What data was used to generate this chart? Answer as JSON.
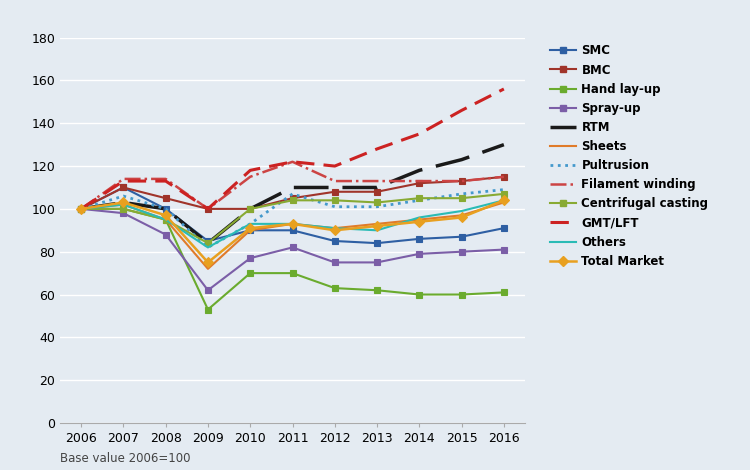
{
  "years": [
    2006,
    2007,
    2008,
    2009,
    2010,
    2011,
    2012,
    2013,
    2014,
    2015,
    2016
  ],
  "series": {
    "SMC": [
      100,
      110,
      100,
      85,
      90,
      90,
      85,
      84,
      86,
      87,
      91
    ],
    "BMC": [
      100,
      110,
      105,
      100,
      100,
      105,
      108,
      108,
      112,
      113,
      115
    ],
    "Hand lay-up": [
      100,
      100,
      95,
      53,
      70,
      70,
      63,
      62,
      60,
      60,
      61
    ],
    "Spray-up": [
      100,
      98,
      88,
      62,
      77,
      82,
      75,
      75,
      79,
      80,
      81
    ],
    "RTM": [
      100,
      103,
      100,
      84,
      100,
      110,
      110,
      110,
      118,
      123,
      130
    ],
    "Sheets": [
      100,
      102,
      95,
      72,
      90,
      93,
      91,
      93,
      95,
      97,
      103
    ],
    "Pultrusion": [
      100,
      106,
      100,
      82,
      93,
      107,
      101,
      101,
      104,
      107,
      109
    ],
    "Filament winding": [
      100,
      114,
      114,
      100,
      115,
      122,
      113,
      113,
      113,
      113,
      115
    ],
    "Centrifugal casting": [
      100,
      100,
      95,
      84,
      100,
      104,
      104,
      103,
      105,
      105,
      107
    ],
    "GMT/LFT": [
      100,
      113,
      113,
      100,
      118,
      122,
      120,
      128,
      135,
      146,
      156
    ],
    "Others": [
      100,
      102,
      95,
      82,
      93,
      93,
      91,
      90,
      96,
      99,
      104
    ],
    "Total Market": [
      100,
      103,
      97,
      75,
      91,
      93,
      90,
      92,
      94,
      96,
      104
    ]
  },
  "line_specs": [
    {
      "name": "SMC",
      "color": "#2E5FA3",
      "ls": "-",
      "lw": 1.5,
      "marker": "s",
      "ms": 4,
      "dashes": null
    },
    {
      "name": "BMC",
      "color": "#A0342A",
      "ls": "-",
      "lw": 1.5,
      "marker": "s",
      "ms": 4,
      "dashes": null
    },
    {
      "name": "Hand lay-up",
      "color": "#6AAB2E",
      "ls": "-",
      "lw": 1.5,
      "marker": "s",
      "ms": 4,
      "dashes": null
    },
    {
      "name": "Spray-up",
      "color": "#7B5EA7",
      "ls": "-",
      "lw": 1.5,
      "marker": "s",
      "ms": 4,
      "dashes": null
    },
    {
      "name": "RTM",
      "color": "#1A1A1A",
      "ls": "--",
      "lw": 2.5,
      "marker": "None",
      "ms": 0,
      "dashes": [
        10,
        4
      ]
    },
    {
      "name": "Sheets",
      "color": "#E07B2A",
      "ls": "-",
      "lw": 1.5,
      "marker": "None",
      "ms": 0,
      "dashes": null
    },
    {
      "name": "Pultrusion",
      "color": "#4499CC",
      "ls": ":",
      "lw": 2.0,
      "marker": "None",
      "ms": 0,
      "dashes": null
    },
    {
      "name": "Filament winding",
      "color": "#CC4444",
      "ls": "-.",
      "lw": 1.8,
      "marker": "None",
      "ms": 0,
      "dashes": null
    },
    {
      "name": "Centrifugal casting",
      "color": "#88AA33",
      "ls": "-",
      "lw": 1.5,
      "marker": "s",
      "ms": 4,
      "dashes": null
    },
    {
      "name": "GMT/LFT",
      "color": "#CC2222",
      "ls": "--",
      "lw": 2.2,
      "marker": "None",
      "ms": 0,
      "dashes": [
        6,
        3
      ]
    },
    {
      "name": "Others",
      "color": "#2ABBB5",
      "ls": "-",
      "lw": 1.5,
      "marker": "None",
      "ms": 0,
      "dashes": null
    },
    {
      "name": "Total Market",
      "color": "#E8A020",
      "ls": "-",
      "lw": 1.8,
      "marker": "D",
      "ms": 5,
      "dashes": null
    }
  ],
  "ylim": [
    0,
    180
  ],
  "yticks": [
    0,
    20,
    40,
    60,
    80,
    100,
    120,
    140,
    160,
    180
  ],
  "background_color": "#E4EBF2",
  "grid_color": "#FFFFFF",
  "footnote": "Base value 2006=100"
}
